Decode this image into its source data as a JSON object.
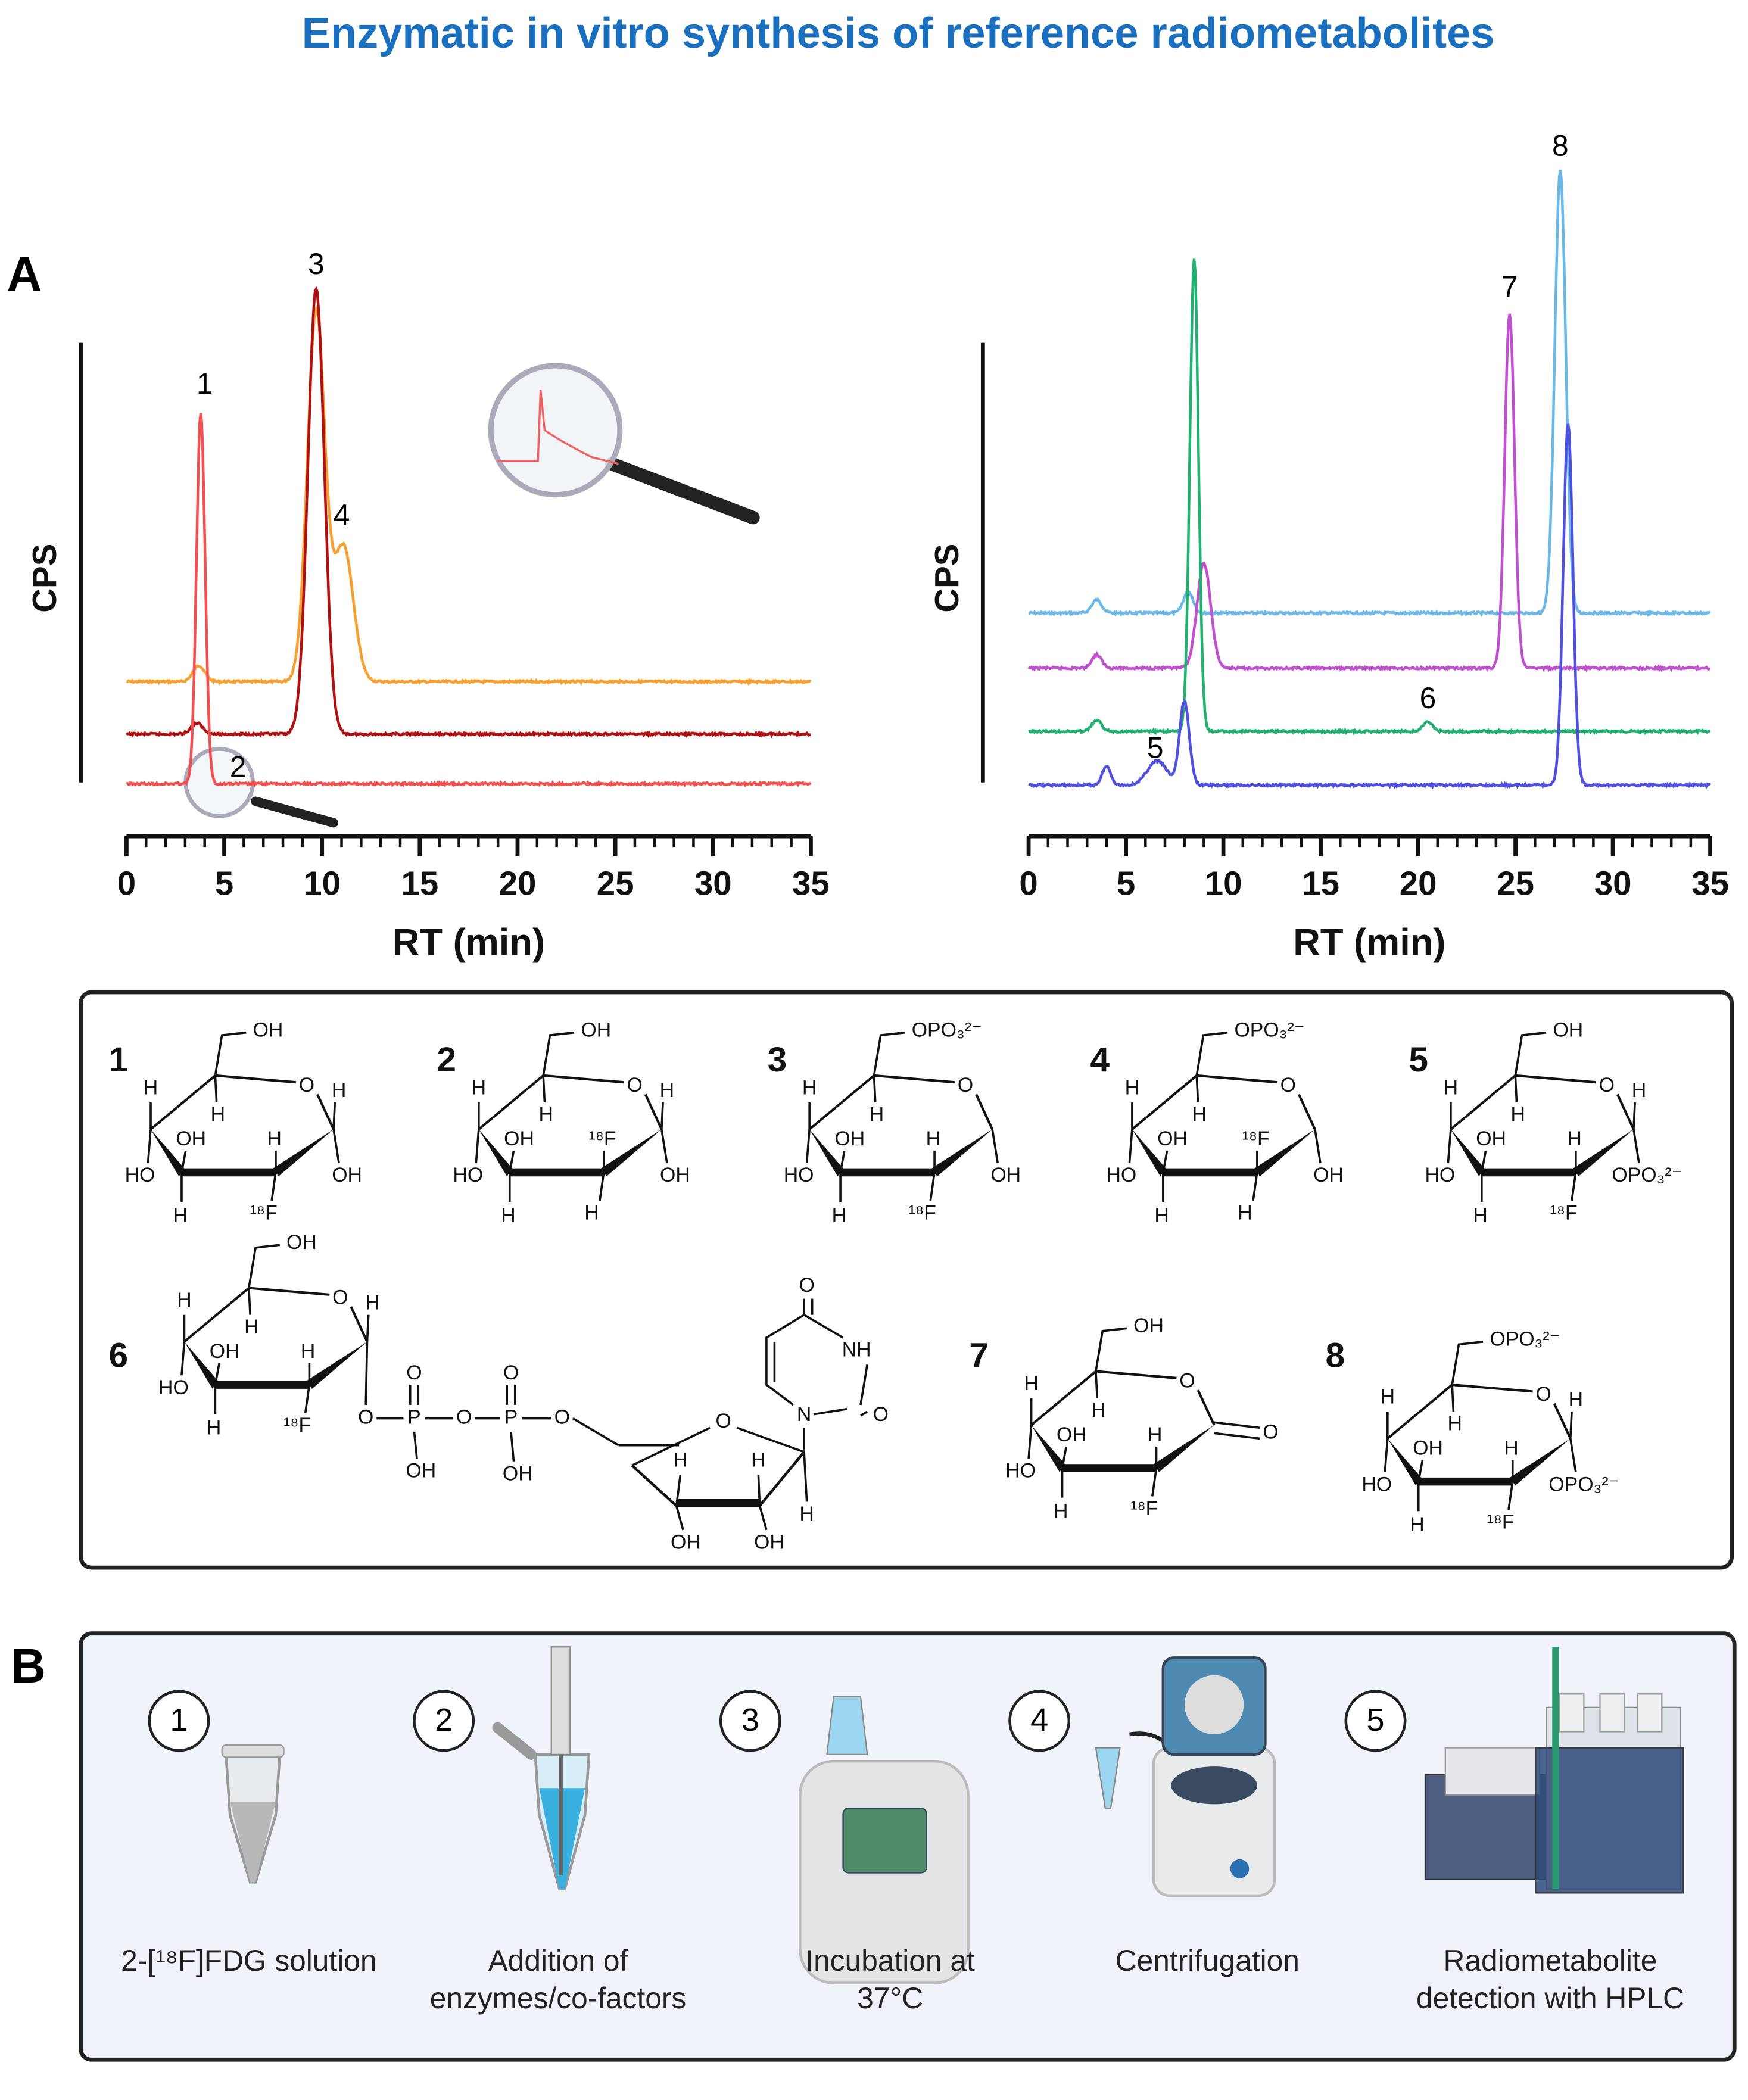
{
  "title": "Enzymatic in vitro synthesis of reference radiometabolites",
  "panel_labels": [
    "A",
    "B"
  ],
  "chart_data": [
    {
      "type": "line",
      "ylabel": "CPS",
      "xlabel": "RT (min)",
      "xlim": [
        0,
        35
      ],
      "xticks": [
        0,
        5,
        10,
        15,
        20,
        25,
        30,
        35
      ],
      "annotations": [
        {
          "text": "1",
          "x": 4
        },
        {
          "text": "2",
          "x": 5.7
        },
        {
          "text": "3",
          "x": 9.7
        },
        {
          "text": "4",
          "x": 11
        }
      ]
    },
    {
      "type": "line",
      "ylabel": "CPS",
      "xlabel": "RT (min)",
      "xlim": [
        0,
        35
      ],
      "xticks": [
        0,
        5,
        10,
        15,
        20,
        25,
        30,
        35
      ],
      "annotations": [
        {
          "text": "5",
          "x": 6.5
        },
        {
          "text": "6",
          "x": 20.5
        },
        {
          "text": "7",
          "x": 24.7
        },
        {
          "text": "8",
          "x": 27.3
        }
      ]
    }
  ],
  "structures": [
    {
      "number": "1",
      "groups": {
        "c6": "OH",
        "o": "O",
        "c1u": "H",
        "c1d": "OH",
        "c2u": "H",
        "c2d": "¹⁸F",
        "c3u": "OH",
        "c3d": "H",
        "c4u": "H",
        "c4d": "HO",
        "c5d": "H"
      }
    },
    {
      "number": "2",
      "groups": {
        "c6": "OH",
        "o": "O",
        "c1u": "H",
        "c1d": "OH",
        "c2u": "¹⁸F",
        "c2d": "H",
        "c3u": "OH",
        "c3d": "H",
        "c4u": "H",
        "c4d": "HO",
        "c5d": "H"
      }
    },
    {
      "number": "3",
      "groups": {
        "c6": "OPO₃²⁻",
        "o": "O",
        "c1d": "OH",
        "c2u": "H",
        "c2d": "¹⁸F",
        "c3u": "OH",
        "c3d": "H",
        "c4u": "H",
        "c4d": "HO",
        "c5d": "H"
      }
    },
    {
      "number": "4",
      "groups": {
        "c6": "OPO₃²⁻",
        "o": "O",
        "c1d": "OH",
        "c2u": "¹⁸F",
        "c2d": "H",
        "c3u": "OH",
        "c3d": "H",
        "c4u": "H",
        "c4d": "HO",
        "c5d": "H"
      }
    },
    {
      "number": "5",
      "groups": {
        "c6": "OH",
        "o": "O",
        "c1u": "H",
        "c1d": "OPO₃²⁻",
        "c2u": "H",
        "c2d": "¹⁸F",
        "c3u": "OH",
        "c3d": "H",
        "c4u": "H",
        "c4d": "HO",
        "c5d": "H"
      }
    },
    {
      "number": "6",
      "groups": {
        "c6": "OH",
        "o": "O",
        "c1u": "H",
        "c2u": "H",
        "c2d": "¹⁸F",
        "c3u": "OH",
        "c3d": "H",
        "c4u": "H",
        "c4d": "HO",
        "c5d": "H"
      },
      "extra": [
        "O",
        "P",
        "O",
        "OH",
        "O",
        "P",
        "O",
        "OH",
        "O",
        "O",
        "H",
        "H",
        "H",
        "OH",
        "OH",
        "N",
        "O",
        "NH",
        "O"
      ]
    },
    {
      "number": "7",
      "groups": {
        "c6": "OH",
        "o": "O",
        "c2u": "H",
        "c2d": "¹⁸F",
        "c3u": "OH",
        "c3d": "H",
        "c4u": "H",
        "c4d": "HO",
        "c5d": "H"
      },
      "extra": [
        "O"
      ]
    },
    {
      "number": "8",
      "groups": {
        "c6": "OPO₃²⁻",
        "o": "O",
        "c1u": "H",
        "c1d": "OPO₃²⁻",
        "c2u": "H",
        "c2d": "¹⁸F",
        "c3u": "OH",
        "c3d": "H",
        "c4u": "H",
        "c4d": "HO",
        "c5d": "H"
      }
    }
  ],
  "workflow": [
    {
      "step": "1",
      "caption": [
        "2-[¹⁸F]FDG solution"
      ]
    },
    {
      "step": "2",
      "caption": [
        "Addition of",
        "enzymes/co-factors"
      ]
    },
    {
      "step": "3",
      "caption": [
        "Incubation at",
        "37°C"
      ]
    },
    {
      "step": "4",
      "caption": [
        "Centrifugation"
      ]
    },
    {
      "step": "5",
      "caption": [
        "Radiometabolite",
        "detection with HPLC"
      ]
    }
  ]
}
